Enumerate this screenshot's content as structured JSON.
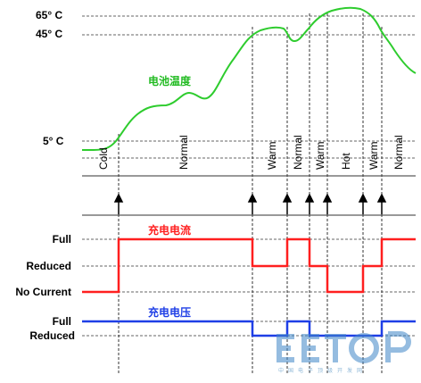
{
  "temperature_axis": {
    "t65": "65° C",
    "t45": "45° C",
    "t5": "5° C"
  },
  "zones": [
    "Cold",
    "Normal",
    "Warm",
    "Normal",
    "Warm",
    "Hot",
    "Warm",
    "Normal"
  ],
  "labels": {
    "battery_temp": "电池温度",
    "charge_current": "充电电流",
    "charge_voltage": "充电电压"
  },
  "current_levels": {
    "full": "Full",
    "reduced": "Reduced",
    "none": "No Current"
  },
  "voltage_levels": {
    "full": "Full",
    "reduced": "Reduced"
  },
  "watermark": {
    "brand": "EETOP",
    "subtitle": "中国电子顶级开发网"
  },
  "colors": {
    "temperature": "#2ecc2e",
    "current": "#ff1f1f",
    "voltage": "#1f3fe6",
    "watermark": "#3f86c8"
  }
}
